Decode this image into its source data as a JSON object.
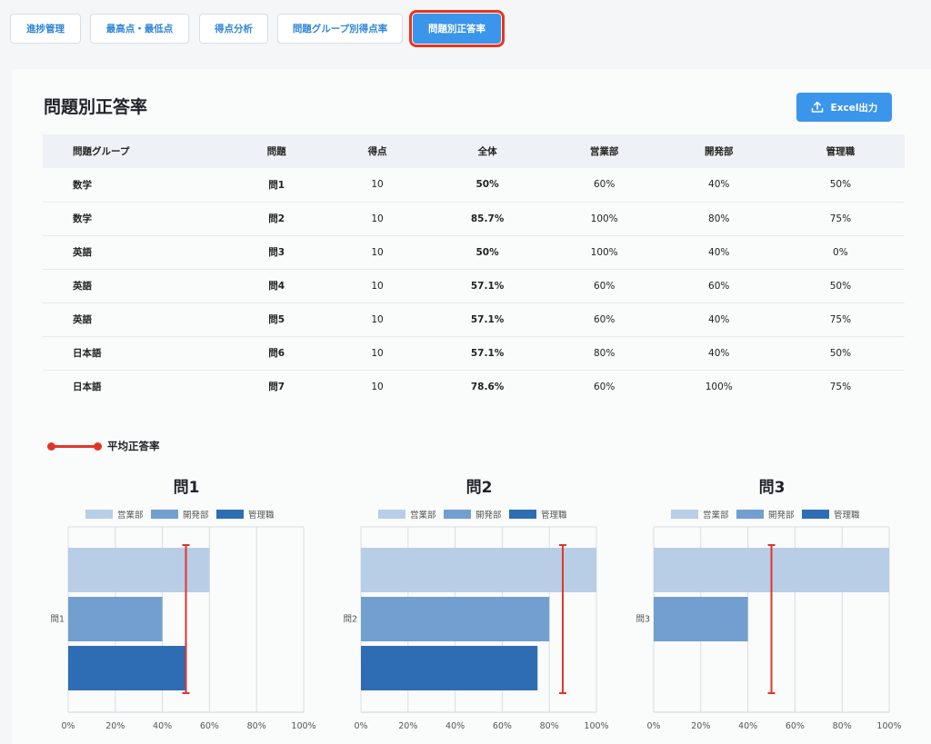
{
  "tabs": [
    {
      "label": "進捗管理",
      "active": false
    },
    {
      "label": "最高点・最低点",
      "active": false
    },
    {
      "label": "得点分析",
      "active": false
    },
    {
      "label": "問題グループ別得点率",
      "active": false
    },
    {
      "label": "問題別正答率",
      "active": true
    }
  ],
  "page": {
    "title": "問題別正答率",
    "export_label": "Excel出力",
    "export_icon": "upload-icon"
  },
  "table": {
    "headers": [
      "問題グループ",
      "問題",
      "得点",
      "全体",
      "営業部",
      "開発部",
      "管理職"
    ],
    "rows": [
      [
        "数学",
        "問1",
        "10",
        "50%",
        "60%",
        "40%",
        "50%"
      ],
      [
        "数学",
        "問2",
        "10",
        "85.7%",
        "100%",
        "80%",
        "75%"
      ],
      [
        "英語",
        "問3",
        "10",
        "50%",
        "100%",
        "40%",
        "0%"
      ],
      [
        "英語",
        "問4",
        "10",
        "57.1%",
        "60%",
        "60%",
        "50%"
      ],
      [
        "英語",
        "問5",
        "10",
        "57.1%",
        "60%",
        "40%",
        "75%"
      ],
      [
        "日本語",
        "問6",
        "10",
        "57.1%",
        "80%",
        "40%",
        "50%"
      ],
      [
        "日本語",
        "問7",
        "10",
        "78.6%",
        "60%",
        "100%",
        "75%"
      ]
    ]
  },
  "avg_legend": {
    "label": "平均正答率",
    "color": "#e0362a"
  },
  "colors": {
    "accent": "#3b95ea",
    "highlight": "#e8361d"
  },
  "chart_data": [
    {
      "type": "bar",
      "orientation": "horizontal",
      "title": "問1",
      "categories": [
        "問1"
      ],
      "series": [
        {
          "name": "営業部",
          "values": [
            60
          ],
          "color": "#b8cde6"
        },
        {
          "name": "開発部",
          "values": [
            40
          ],
          "color": "#729fcf"
        },
        {
          "name": "管理職",
          "values": [
            50
          ],
          "color": "#2e6db4"
        }
      ],
      "average": 50,
      "xlim": [
        0,
        100
      ],
      "xticks": [
        "0%",
        "20%",
        "40%",
        "60%",
        "80%",
        "100%"
      ],
      "legend": "top",
      "grid": true
    },
    {
      "type": "bar",
      "orientation": "horizontal",
      "title": "問2",
      "categories": [
        "問2"
      ],
      "series": [
        {
          "name": "営業部",
          "values": [
            100
          ],
          "color": "#b8cde6"
        },
        {
          "name": "開発部",
          "values": [
            80
          ],
          "color": "#729fcf"
        },
        {
          "name": "管理職",
          "values": [
            75
          ],
          "color": "#2e6db4"
        }
      ],
      "average": 85.7,
      "xlim": [
        0,
        100
      ],
      "xticks": [
        "0%",
        "20%",
        "40%",
        "60%",
        "80%",
        "100%"
      ],
      "legend": "top",
      "grid": true
    },
    {
      "type": "bar",
      "orientation": "horizontal",
      "title": "問3",
      "categories": [
        "問3"
      ],
      "series": [
        {
          "name": "営業部",
          "values": [
            100
          ],
          "color": "#b8cde6"
        },
        {
          "name": "開発部",
          "values": [
            40
          ],
          "color": "#729fcf"
        },
        {
          "name": "管理職",
          "values": [
            0
          ],
          "color": "#2e6db4"
        }
      ],
      "average": 50,
      "xlim": [
        0,
        100
      ],
      "xticks": [
        "0%",
        "20%",
        "40%",
        "60%",
        "80%",
        "100%"
      ],
      "legend": "top",
      "grid": true
    }
  ]
}
